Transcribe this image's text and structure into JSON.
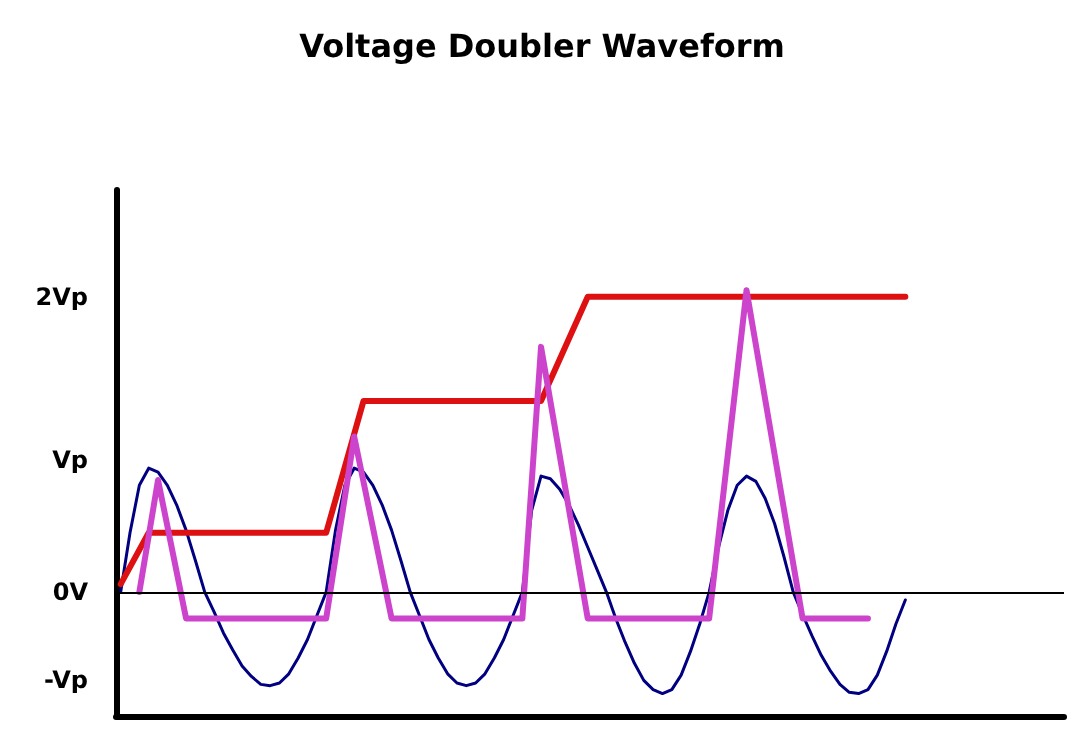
{
  "chart_data": {
    "type": "line",
    "title": "Voltage Doubler Waveform",
    "categories": [
      null,
      null,
      null,
      null,
      null,
      null,
      null,
      null,
      null,
      null,
      null,
      null,
      null,
      null,
      null,
      null,
      null,
      null,
      null,
      null,
      null,
      null,
      null,
      null,
      null,
      null,
      null,
      null,
      null,
      null,
      null,
      null,
      null,
      null,
      null,
      null,
      null,
      null,
      null,
      null,
      null,
      null,
      null,
      null,
      null,
      null,
      null,
      null,
      null,
      null,
      null,
      null,
      null,
      null,
      null,
      null,
      null,
      null,
      null,
      null,
      null,
      null,
      null,
      null,
      null,
      null,
      null,
      null,
      null,
      null,
      null,
      null,
      null,
      null,
      null,
      null,
      null,
      null,
      null,
      null,
      null,
      null,
      null,
      null,
      null
    ],
    "series": [
      {
        "color": "#000080",
        "values": [
          0,
          0.45,
          0.81,
          0.94,
          0.91,
          0.81,
          0.66,
          0.47,
          0.24,
          0,
          -0.15,
          -0.31,
          -0.44,
          -0.56,
          -0.64,
          -0.7,
          -0.71,
          -0.69,
          -0.62,
          -0.5,
          -0.36,
          -0.18,
          0,
          0.47,
          0.81,
          0.94,
          0.91,
          0.81,
          0.66,
          0.47,
          0.24,
          0,
          -0.18,
          -0.36,
          -0.5,
          -0.62,
          -0.69,
          -0.71,
          -0.69,
          -0.62,
          -0.5,
          -0.36,
          -0.18,
          0,
          0.62,
          0.88,
          0.86,
          0.78,
          0.66,
          0.51,
          0.34,
          0.17,
          0,
          -0.2,
          -0.38,
          -0.54,
          -0.67,
          -0.74,
          -0.77,
          -0.74,
          -0.63,
          -0.45,
          -0.24,
          0,
          0.34,
          0.62,
          0.81,
          0.88,
          0.84,
          0.71,
          0.52,
          0.27,
          0,
          -0.17,
          -0.33,
          -0.48,
          -0.6,
          -0.7,
          -0.76,
          -0.77,
          -0.74,
          -0.63,
          -0.45,
          -0.24,
          -0.06
        ]
      },
      {
        "color": "#dd1111",
        "values": [
          0.06,
          null,
          null,
          0.45,
          null,
          null,
          null,
          null,
          null,
          null,
          null,
          null,
          null,
          null,
          null,
          null,
          null,
          null,
          null,
          null,
          null,
          null,
          0.45,
          null,
          null,
          null,
          1.45,
          null,
          null,
          null,
          null,
          null,
          null,
          null,
          null,
          null,
          null,
          null,
          null,
          null,
          null,
          null,
          null,
          null,
          null,
          1.45,
          null,
          null,
          null,
          null,
          2.24,
          null,
          null,
          null,
          null,
          null,
          null,
          null,
          null,
          null,
          null,
          null,
          null,
          null,
          null,
          null,
          null,
          null,
          null,
          null,
          null,
          null,
          null,
          null,
          null,
          null,
          null,
          null,
          null,
          null,
          null,
          null,
          null,
          null,
          2.24
        ]
      },
      {
        "color": "#cc44cc",
        "values": [
          null,
          null,
          0,
          null,
          0.85,
          null,
          null,
          -0.2,
          null,
          null,
          null,
          null,
          null,
          null,
          null,
          null,
          null,
          null,
          null,
          null,
          null,
          null,
          -0.2,
          null,
          null,
          1.18,
          null,
          null,
          null,
          -0.2,
          null,
          null,
          null,
          null,
          null,
          null,
          null,
          null,
          null,
          null,
          null,
          null,
          null,
          -0.2,
          null,
          1.86,
          null,
          null,
          null,
          null,
          -0.2,
          null,
          null,
          null,
          null,
          null,
          null,
          null,
          null,
          null,
          null,
          null,
          null,
          -0.2,
          null,
          null,
          null,
          2.29,
          null,
          null,
          null,
          null,
          null,
          -0.2,
          null,
          null,
          null,
          null,
          null,
          null,
          -0.2,
          null,
          null,
          null,
          null
        ]
      }
    ],
    "ylim": [
      -0.94,
      3.05
    ],
    "yticks": [
      {
        "value": 2.24,
        "label": "2Vp"
      },
      {
        "value": 1,
        "label": "Vp"
      },
      {
        "value": 0,
        "label": "0V"
      },
      {
        "value": -0.67,
        "label": "-Vp"
      }
    ],
    "ref_lines": [
      {
        "axis": "y",
        "value": 0,
        "label": null,
        "color": "#000000"
      }
    ],
    "tick_labels": "y",
    "grid": false,
    "line_style": "solid"
  }
}
